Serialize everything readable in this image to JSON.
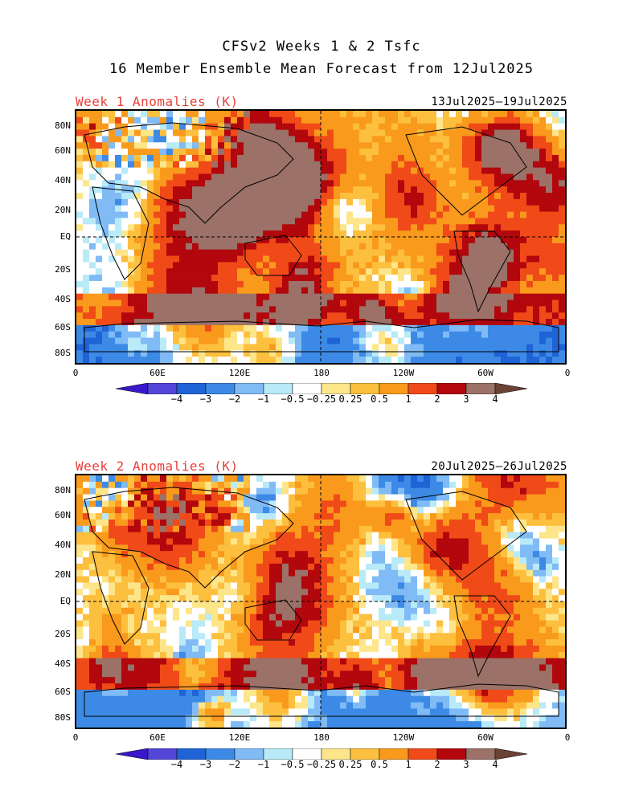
{
  "title": {
    "line1": "CFSv2 Weeks 1 & 2 Tsfc",
    "line2": "16 Member Ensemble Mean Forecast from 12Jul2025"
  },
  "panels": [
    {
      "label": "Week 1 Anomalies (K)",
      "date_range": "13Jul2025—19Jul2025"
    },
    {
      "label": "Week 2 Anomalies (K)",
      "date_range": "20Jul2025—26Jul2025"
    }
  ],
  "lat_labels": [
    "80N",
    "60N",
    "40N",
    "20N",
    "EQ",
    "20S",
    "40S",
    "60S",
    "80S"
  ],
  "lon_labels": [
    "0",
    "60E",
    "120E",
    "180",
    "120W",
    "60W",
    "0"
  ],
  "colorbar": {
    "labels": [
      "−4",
      "−3",
      "−2",
      "−1",
      "−0.5",
      "−0.25",
      "0.25",
      "0.5",
      "1",
      "2",
      "3",
      "4"
    ],
    "colors": [
      "#3a17c8",
      "#5346d8",
      "#1f63d6",
      "#3c8ae6",
      "#80bbf5",
      "#b8eaf8",
      "#ffffff",
      "#fde58a",
      "#fdbf3e",
      "#f99a1c",
      "#f04a18",
      "#b1070d",
      "#9b7168",
      "#6b4236"
    ]
  }
}
